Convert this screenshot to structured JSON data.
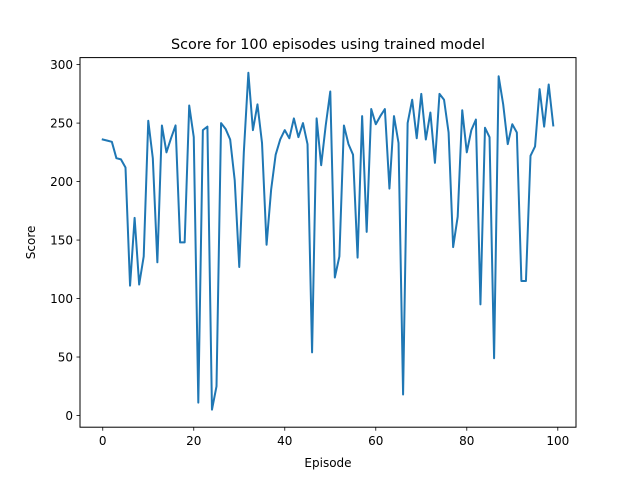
{
  "chart_data": {
    "type": "line",
    "title": "Score for 100 episodes using trained model",
    "xlabel": "Episode",
    "ylabel": "Score",
    "xlim": [
      -5,
      104
    ],
    "ylim": [
      -10,
      306
    ],
    "xticks": [
      0,
      20,
      40,
      60,
      80,
      100
    ],
    "yticks": [
      0,
      50,
      100,
      150,
      200,
      250,
      300
    ],
    "grid": false,
    "legend": "none",
    "line_color": "#1f77b4",
    "series": [
      {
        "x": [
          0,
          1,
          2,
          3,
          4,
          5,
          6,
          7,
          8,
          9,
          10,
          11,
          12,
          13,
          14,
          15,
          16,
          17,
          18,
          19,
          20,
          21,
          22,
          23,
          24,
          25,
          26,
          27,
          28,
          29,
          30,
          31,
          32,
          33,
          34,
          35,
          36,
          37,
          38,
          39,
          40,
          41,
          42,
          43,
          44,
          45,
          46,
          47,
          48,
          49,
          50,
          51,
          52,
          53,
          54,
          55,
          56,
          57,
          58,
          59,
          60,
          61,
          62,
          63,
          64,
          65,
          66,
          67,
          68,
          69,
          70,
          71,
          72,
          73,
          74,
          75,
          76,
          77,
          78,
          79,
          80,
          81,
          82,
          83,
          84,
          85,
          86,
          87,
          88,
          89,
          90,
          91,
          92,
          93,
          94,
          95,
          96,
          97,
          98,
          99
        ],
        "values": [
          236,
          235,
          234,
          220,
          219,
          212,
          111,
          169,
          112,
          136,
          252,
          220,
          131,
          248,
          225,
          237,
          248,
          148,
          148,
          265,
          238,
          11,
          244,
          247,
          5,
          25,
          250,
          245,
          236,
          201,
          127,
          225,
          293,
          244,
          266,
          233,
          146,
          193,
          223,
          236,
          244,
          237,
          254,
          238,
          250,
          232,
          54,
          254,
          214,
          248,
          277,
          118,
          136,
          248,
          232,
          223,
          135,
          256,
          157,
          262,
          249,
          256,
          262,
          194,
          256,
          233,
          18,
          250,
          270,
          237,
          275,
          236,
          259,
          216,
          275,
          270,
          242,
          144,
          170,
          261,
          225,
          244,
          253,
          95,
          246,
          238,
          49,
          290,
          266,
          232,
          249,
          242,
          115,
          115,
          222,
          230,
          279,
          247,
          283,
          248
        ]
      }
    ]
  }
}
